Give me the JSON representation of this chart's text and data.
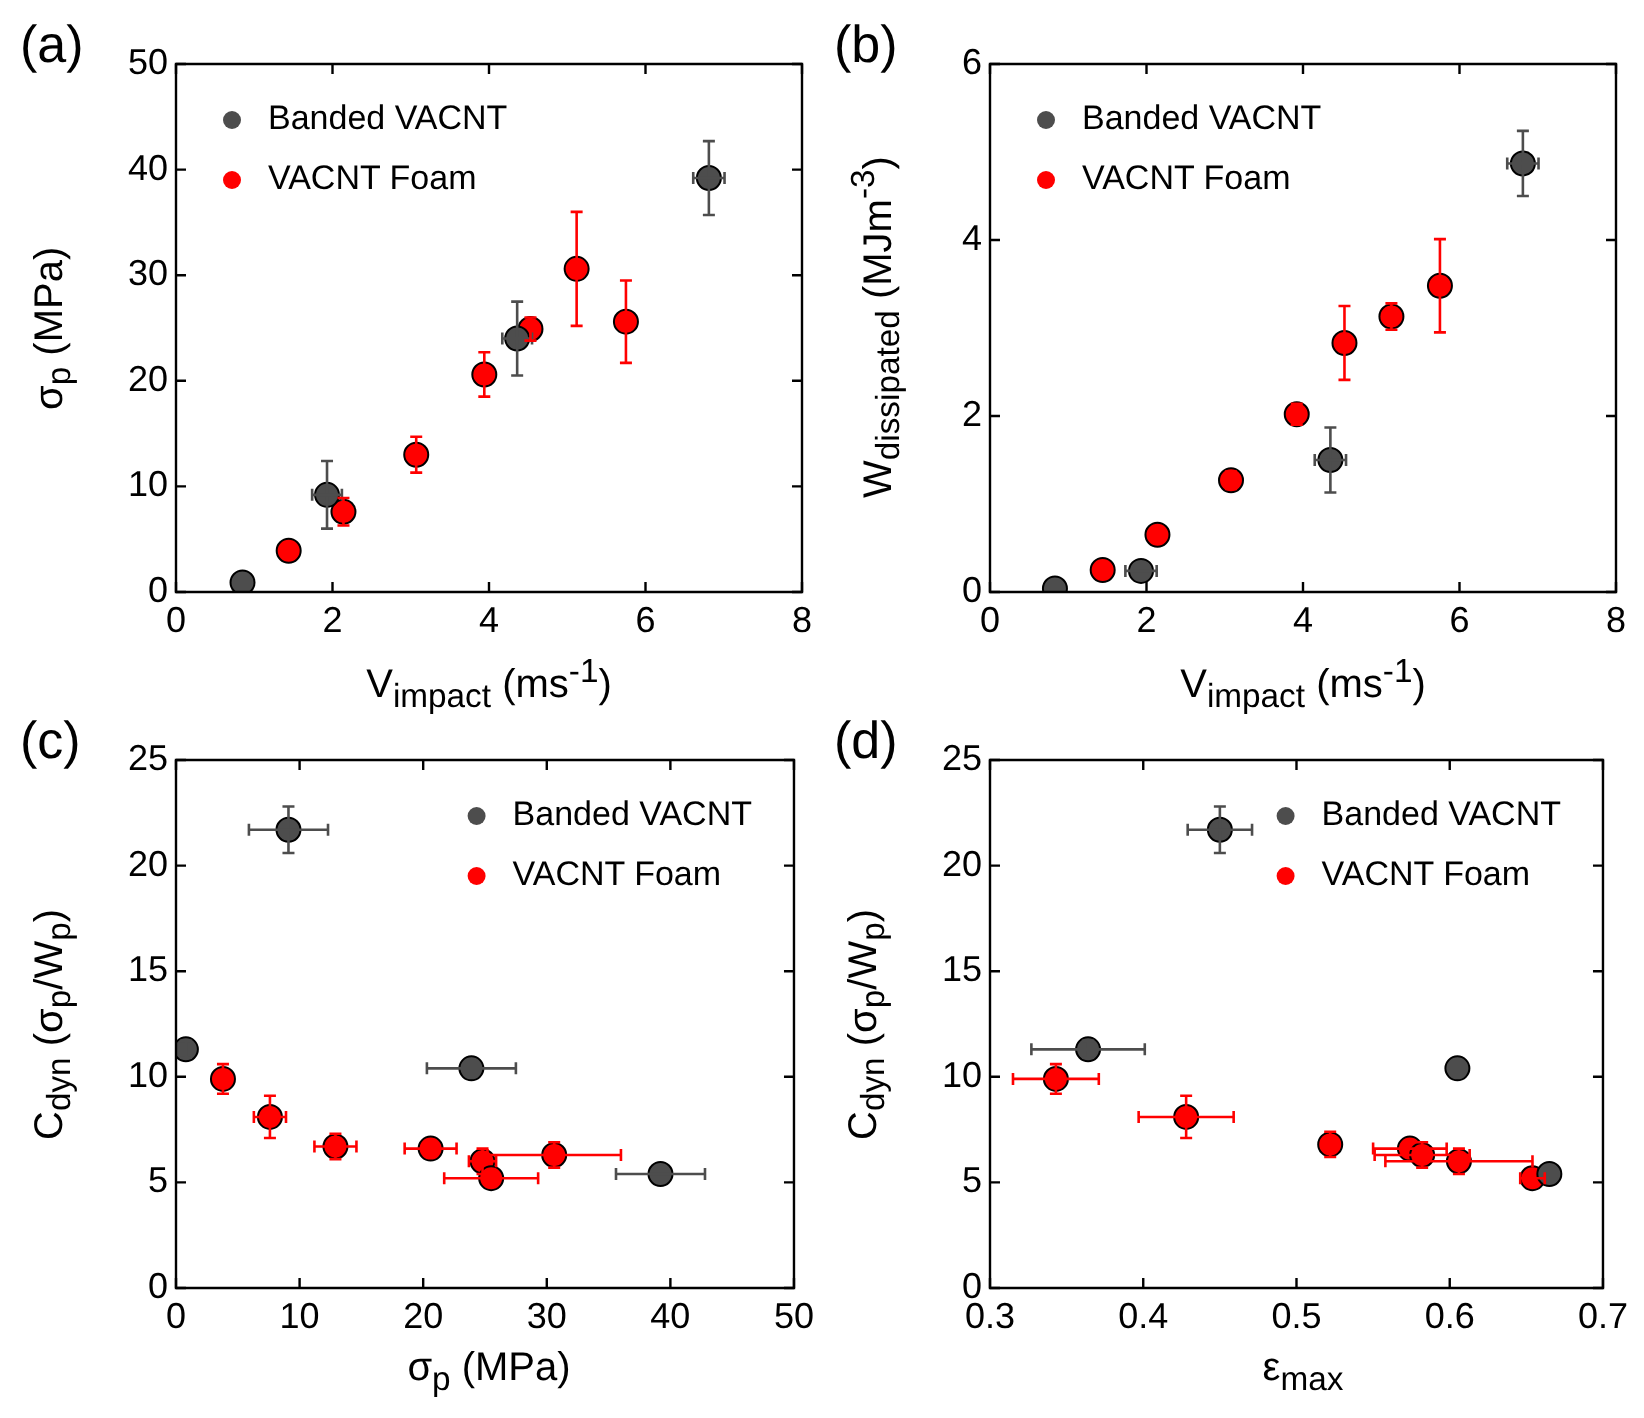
{
  "chart_data": [
    {
      "type": "scatter",
      "title": "(a)",
      "xlabel": "V$_{impact}$ (ms$^{-1}$)",
      "ylabel": "σ$_{p}$ (MPa)",
      "xlim": [
        0,
        8
      ],
      "xticks": [
        0,
        2,
        4,
        6,
        8
      ],
      "ylim": [
        0,
        50
      ],
      "yticks": [
        0,
        10,
        20,
        30,
        40,
        50
      ],
      "grid": false,
      "legend": "top left",
      "marker": "circle",
      "series": [
        {
          "name": "Banded VACNT",
          "color": "#4d4d4d",
          "x": [
            0.85,
            1.93,
            4.36,
            6.81
          ],
          "values": [
            0.9,
            9.2,
            24.0,
            39.2
          ],
          "errors": [
            null,
            3.2,
            3.5,
            3.5
          ],
          "xerrors": [
            null,
            0.19,
            0.19,
            0.2
          ]
        },
        {
          "name": "VACNT Foam",
          "color": "#ff0000",
          "x": [
            1.44,
            2.14,
            3.07,
            3.94,
            4.53,
            5.12,
            5.75
          ],
          "values": [
            3.9,
            7.6,
            13.0,
            20.6,
            24.9,
            30.6,
            25.6
          ],
          "errors": [
            null,
            1.3,
            1.7,
            2.1,
            1.1,
            5.4,
            3.9
          ],
          "xerrors": [
            null,
            null,
            null,
            null,
            null,
            null,
            null
          ]
        }
      ]
    },
    {
      "type": "scatter",
      "title": "(b)",
      "xlabel": "V$_{impact}$ (ms$^{-1}$)",
      "ylabel": "W$_{dissipated}$ (MJm$^{-3}$)",
      "xlim": [
        0,
        8
      ],
      "xticks": [
        0,
        2,
        4,
        6,
        8
      ],
      "ylim": [
        0,
        6
      ],
      "yticks": [
        0,
        2,
        4,
        6
      ],
      "grid": false,
      "legend": "top left",
      "marker": "circle",
      "series": [
        {
          "name": "Banded VACNT",
          "color": "#4d4d4d",
          "x": [
            0.83,
            1.93,
            4.35,
            6.81
          ],
          "values": [
            0.04,
            0.24,
            1.5,
            4.87
          ],
          "errors": [
            null,
            null,
            0.37,
            0.37
          ],
          "xerrors": [
            null,
            0.2,
            0.2,
            0.2
          ]
        },
        {
          "name": "VACNT Foam",
          "color": "#ff0000",
          "x": [
            1.44,
            2.14,
            3.08,
            3.92,
            4.53,
            5.13,
            5.75
          ],
          "values": [
            0.25,
            0.65,
            1.27,
            2.02,
            2.83,
            3.13,
            3.48
          ],
          "errors": [
            null,
            null,
            0.1,
            0.12,
            0.42,
            0.15,
            0.53
          ],
          "xerrors": [
            null,
            null,
            null,
            null,
            null,
            null,
            null
          ]
        }
      ]
    },
    {
      "type": "scatter",
      "title": "(c)",
      "xlabel": "σ$_{p}$ (MPa)",
      "ylabel": "C$_{dyn}$ (σ$_{p}$/W$_{p}$)",
      "xlim": [
        0,
        50
      ],
      "xticks": [
        0,
        10,
        20,
        30,
        40,
        50
      ],
      "ylim": [
        0,
        25
      ],
      "yticks": [
        0,
        5,
        10,
        15,
        20,
        25
      ],
      "grid": false,
      "legend": "top right",
      "marker": "circle",
      "series": [
        {
          "name": "Banded VACNT",
          "color": "#4d4d4d",
          "x": [
            0.8,
            9.1,
            23.9,
            39.2
          ],
          "values": [
            11.3,
            21.7,
            10.4,
            5.4
          ],
          "errors": [
            0.4,
            1.1,
            null,
            null
          ],
          "xerrors": [
            null,
            3.2,
            3.6,
            3.6
          ]
        },
        {
          "name": "VACNT Foam",
          "color": "#ff0000",
          "x": [
            3.8,
            7.6,
            12.9,
            20.6,
            24.8,
            25.5,
            30.6
          ],
          "values": [
            9.9,
            8.1,
            6.7,
            6.6,
            6.0,
            5.2,
            6.3
          ],
          "errors": [
            0.7,
            1.0,
            0.6,
            null,
            0.6,
            null,
            0.6
          ],
          "xerrors": [
            null,
            1.3,
            1.7,
            2.1,
            1.1,
            3.8,
            5.4
          ]
        }
      ]
    },
    {
      "type": "scatter",
      "title": "(d)",
      "xlabel": "ε$_{max}$",
      "ylabel": "C$_{dyn}$ (σ$_{p}$/W$_{p}$)",
      "xlim": [
        0.3,
        0.7
      ],
      "xticks": [
        0.3,
        0.4,
        0.5,
        0.6,
        0.7
      ],
      "ylim": [
        0,
        25
      ],
      "yticks": [
        0,
        5,
        10,
        15,
        20,
        25
      ],
      "grid": false,
      "legend": "top right",
      "marker": "circle",
      "series": [
        {
          "name": "Banded VACNT",
          "color": "#4d4d4d",
          "x": [
            0.364,
            0.45,
            0.605,
            0.665
          ],
          "values": [
            11.3,
            21.7,
            10.4,
            5.4
          ],
          "errors": [
            0.4,
            1.1,
            null,
            null
          ],
          "xerrors": [
            0.037,
            0.021,
            null,
            null
          ]
        },
        {
          "name": "VACNT Foam",
          "color": "#ff0000",
          "x": [
            0.343,
            0.428,
            0.522,
            0.574,
            0.582,
            0.606,
            0.654
          ],
          "values": [
            9.9,
            8.1,
            6.8,
            6.6,
            6.3,
            6.0,
            5.2
          ],
          "errors": [
            0.7,
            1.0,
            0.6,
            null,
            0.6,
            0.6,
            null
          ],
          "xerrors": [
            0.028,
            0.031,
            0.005,
            0.024,
            0.031,
            0.048,
            0.008
          ]
        }
      ]
    }
  ]
}
